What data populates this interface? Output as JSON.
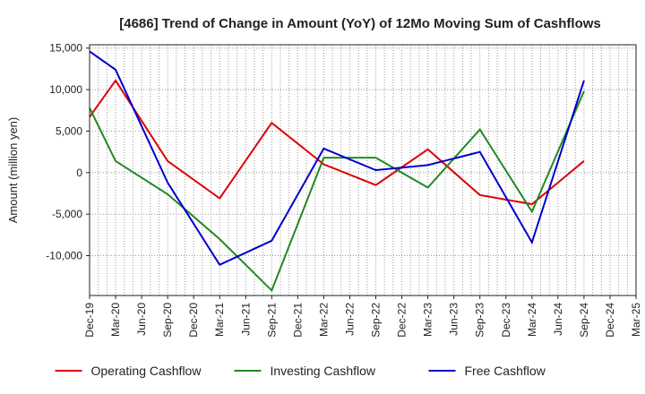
{
  "chart_data": {
    "type": "line",
    "title": "[4686]  Trend of Change in Amount (YoY) of 12Mo Moving Sum of Cashflows",
    "xlabel": "",
    "ylabel": "Amount (million yen)",
    "ylim": [
      -14800,
      15400
    ],
    "yticks": [
      15000,
      10000,
      5000,
      0,
      -5000,
      -10000
    ],
    "ytick_labels": [
      "15,000",
      "10,000",
      "5,000",
      "0",
      "-5,000",
      "-10,000"
    ],
    "categories": [
      "Dec-19",
      "Mar-20",
      "Jun-20",
      "Sep-20",
      "Dec-20",
      "Mar-21",
      "Jun-21",
      "Sep-21",
      "Dec-21",
      "Mar-22",
      "Jun-22",
      "Sep-22",
      "Dec-22",
      "Mar-23",
      "Jun-23",
      "Sep-23",
      "Dec-23",
      "Mar-24",
      "Jun-24",
      "Sep-24",
      "Dec-24",
      "Mar-25"
    ],
    "grid": true,
    "legend_position": "bottom",
    "series": [
      {
        "name": "Operating Cashflow",
        "color": "#dd0000",
        "values": [
          6700,
          11100,
          null,
          1400,
          null,
          -3100,
          null,
          6000,
          null,
          1000,
          null,
          -1500,
          null,
          2800,
          null,
          -2700,
          null,
          -3800,
          null,
          1400,
          null,
          null
        ]
      },
      {
        "name": "Investing Cashflow",
        "color": "#228822",
        "values": [
          7800,
          1400,
          null,
          -2600,
          null,
          -8000,
          null,
          -14200,
          null,
          1800,
          null,
          1800,
          null,
          -1800,
          null,
          5200,
          null,
          -4700,
          null,
          9800,
          null,
          null
        ]
      },
      {
        "name": "Free Cashflow",
        "color": "#0000cc",
        "values": [
          14600,
          12400,
          null,
          -1200,
          null,
          -11100,
          null,
          -8200,
          null,
          2900,
          null,
          300,
          null,
          900,
          null,
          2500,
          null,
          -8400,
          null,
          11100,
          null,
          null
        ]
      }
    ]
  }
}
